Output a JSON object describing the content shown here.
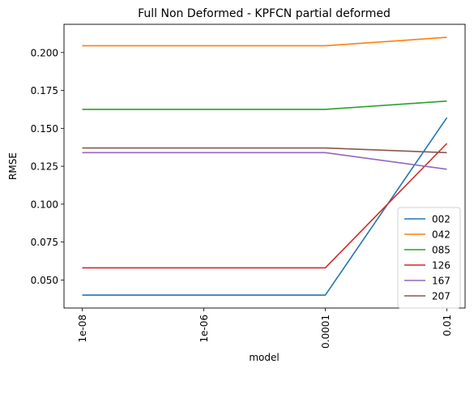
{
  "chart_data": {
    "type": "line",
    "title": "Full Non Deformed - KPFCN partial deformed",
    "xlabel": "model",
    "ylabel": "RMSE",
    "x": [
      "1e-08",
      "1e-06",
      "0.0001",
      "0.01"
    ],
    "ylim": [
      0.0315,
      0.2186
    ],
    "yticks": [
      "0.050",
      "0.075",
      "0.100",
      "0.125",
      "0.150",
      "0.175",
      "0.200"
    ],
    "grid": false,
    "legend_position": "lower-right",
    "series": [
      {
        "name": "002",
        "color": "#1f77b4",
        "values": [
          0.04,
          0.04,
          0.04,
          0.157
        ]
      },
      {
        "name": "042",
        "color": "#ff7f0e",
        "values": [
          0.2045,
          0.2045,
          0.2045,
          0.21
        ]
      },
      {
        "name": "085",
        "color": "#2ca02c",
        "values": [
          0.1625,
          0.1625,
          0.1625,
          0.168
        ]
      },
      {
        "name": "126",
        "color": "#d62728",
        "values": [
          0.058,
          0.058,
          0.058,
          0.14
        ]
      },
      {
        "name": "167",
        "color": "#9467bd",
        "values": [
          0.134,
          0.134,
          0.134,
          0.123
        ]
      },
      {
        "name": "207",
        "color": "#8c564b",
        "values": [
          0.137,
          0.137,
          0.137,
          0.134
        ]
      }
    ]
  }
}
